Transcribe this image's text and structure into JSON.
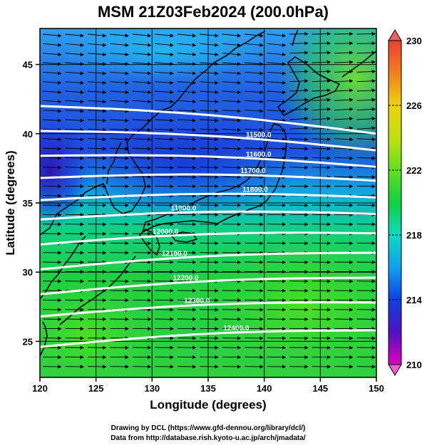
{
  "title": "MSM 21Z03Feb2024 (200.0hPa)",
  "xlabel": "Longitude (degrees)",
  "ylabel": "Latitude  (degrees)",
  "credit_line1": "Drawing by DCL (https://www.gfd-dennou.org/library/dcl/)",
  "credit_line2": "Data from http://database.rish.kyoto-u.ac.jp/arch/jmadata/",
  "chart_data": {
    "type": "heatmap",
    "x_range": [
      120,
      150
    ],
    "y_range": [
      22.4,
      47.6
    ],
    "x_ticks": [
      120,
      125,
      130,
      135,
      140,
      145,
      150
    ],
    "x_tick_labels": [
      "120",
      "125",
      "130",
      "135",
      "140",
      "145",
      "150"
    ],
    "y_ticks": [
      25,
      30,
      35,
      40,
      45
    ],
    "y_tick_labels": [
      "25",
      "30",
      "35",
      "40",
      "45"
    ],
    "grid": true,
    "colorbar": {
      "range": [
        210,
        230
      ],
      "ticks": [
        210,
        214,
        218,
        222,
        226,
        230
      ],
      "tick_labels": [
        "210",
        "214",
        "218",
        "222",
        "226",
        "230"
      ],
      "stops": [
        "#e000c0",
        "#5010c0",
        "#1040e0",
        "#10a0f0",
        "#10d8c0",
        "#10d040",
        "#60e020",
        "#c0e010",
        "#f0d010",
        "#f08020",
        "#f04030"
      ]
    },
    "contours": [
      {
        "label": "12400.0",
        "lat_west": 24.6,
        "lat_east": 25.8,
        "label_lon": 137.5
      },
      {
        "label": "12300.0",
        "lat_west": 26.8,
        "lat_east": 27.8,
        "label_lon": 134.0
      },
      {
        "label": "12200.0",
        "lat_west": 28.4,
        "lat_east": 29.6,
        "label_lon": 133.0
      },
      {
        "label": "12100.0",
        "lat_west": 30.2,
        "lat_east": 31.4,
        "label_lon": 132.0
      },
      {
        "label": "12000.0",
        "lat_west": 32.0,
        "lat_east": 32.8,
        "label_lon": 131.2
      },
      {
        "label": "11900.0",
        "lat_west": 33.8,
        "lat_east": 34.2,
        "label_lon": 132.8
      },
      {
        "label": "11800.0",
        "lat_west": 35.2,
        "lat_east": 35.4,
        "label_lon": 139.2
      },
      {
        "label": "11700.0",
        "lat_west": 36.8,
        "lat_east": 36.6,
        "label_lon": 139.0
      },
      {
        "label": "11600.0",
        "lat_west": 38.4,
        "lat_east": 37.6,
        "label_lon": 139.5
      },
      {
        "label": "11500.0",
        "lat_west": 40.2,
        "lat_east": 38.8,
        "label_lon": 139.5
      },
      {
        "label": "",
        "lat_west": 42.0,
        "lat_east": 40.0,
        "label_lon": 0
      }
    ]
  }
}
